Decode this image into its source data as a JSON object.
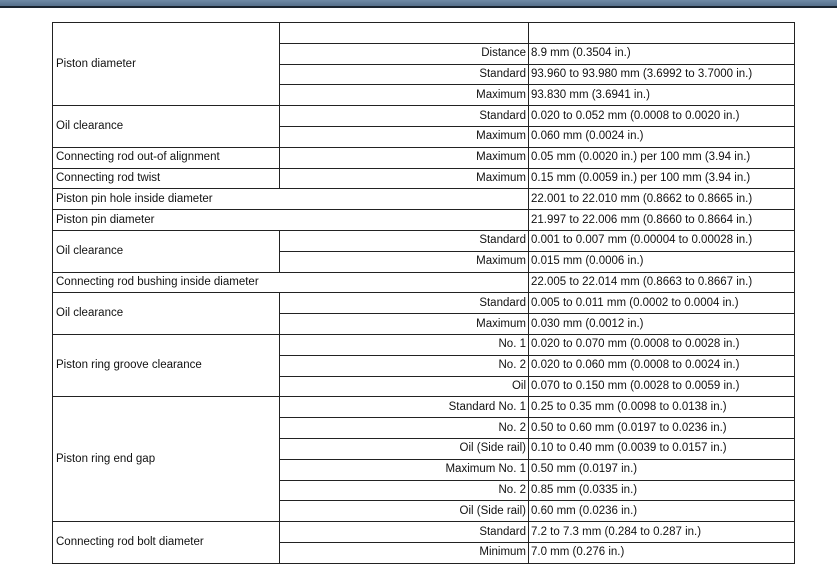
{
  "groups": [
    {
      "label": "Piston diameter",
      "header_row": true,
      "rows": [
        {
          "sub": "Distance",
          "value": "8.9 mm (0.3504 in.)"
        },
        {
          "sub": "Standard",
          "value": "93.960 to 93.980 mm (3.6992 to 3.7000 in.)"
        },
        {
          "sub": "Maximum",
          "value": "93.830 mm (3.6941 in.)"
        }
      ]
    },
    {
      "label": "Oil clearance",
      "rows": [
        {
          "sub": "Standard",
          "value": "0.020 to 0.052 mm (0.0008 to 0.0020 in.)"
        },
        {
          "sub": "Maximum",
          "value": "0.060 mm (0.0024 in.)"
        }
      ]
    },
    {
      "label": "Connecting rod out-of alignment",
      "rows": [
        {
          "sub": "Maximum",
          "value": "0.05 mm (0.0020 in.) per 100 mm (3.94 in.)"
        }
      ]
    },
    {
      "label": "Connecting rod twist",
      "rows": [
        {
          "sub": "Maximum",
          "value": "0.15 mm (0.0059 in.) per 100 mm (3.94 in.)"
        }
      ]
    },
    {
      "label": "Piston pin hole inside diameter",
      "wide": true,
      "rows": [
        {
          "value": "22.001 to 22.010 mm (0.8662 to 0.8665 in.)"
        }
      ]
    },
    {
      "label": "Piston pin diameter",
      "wide": true,
      "rows": [
        {
          "value": "21.997 to 22.006 mm (0.8660 to 0.8664 in.)"
        }
      ]
    },
    {
      "label": "Oil clearance",
      "rows": [
        {
          "sub": "Standard",
          "value": "0.001 to 0.007 mm (0.00004 to 0.00028 in.)"
        },
        {
          "sub": "Maximum",
          "value": "0.015 mm (0.0006 in.)"
        }
      ]
    },
    {
      "label": "Connecting rod bushing inside diameter",
      "wide": true,
      "rows": [
        {
          "value": "22.005 to 22.014 mm (0.8663 to 0.8667 in.)"
        }
      ]
    },
    {
      "label": "Oil clearance",
      "rows": [
        {
          "sub": "Standard",
          "value": "0.005 to 0.011 mm (0.0002 to 0.0004 in.)"
        },
        {
          "sub": "Maximum",
          "value": "0.030 mm (0.0012 in.)"
        }
      ]
    },
    {
      "label": "Piston ring groove clearance",
      "rows": [
        {
          "sub": "No. 1",
          "value": "0.020 to 0.070 mm (0.0008 to 0.0028 in.)"
        },
        {
          "sub": "No. 2",
          "value": "0.020 to 0.060 mm (0.0008 to 0.0024 in.)"
        },
        {
          "sub": "Oil",
          "value": "0.070 to 0.150 mm (0.0028 to 0.0059 in.)"
        }
      ]
    },
    {
      "label": "Piston ring end gap",
      "rows": [
        {
          "sub": "Standard No. 1",
          "value": "0.25 to 0.35 mm (0.0098 to 0.0138 in.)"
        },
        {
          "sub": "No. 2",
          "value": "0.50 to 0.60 mm (0.0197 to 0.0236 in.)"
        },
        {
          "sub": "Oil (Side rail)",
          "value": "0.10 to 0.40 mm (0.0039 to 0.0157 in.)"
        },
        {
          "sub": "Maximum No. 1",
          "value": "0.50 mm (0.0197 in.)"
        },
        {
          "sub": "No. 2",
          "value": "0.85 mm (0.0335 in.)"
        },
        {
          "sub": "Oil (Side rail)",
          "value": "0.60 mm (0.0236 in.)"
        }
      ]
    },
    {
      "label": "Connecting rod bolt diameter",
      "rows": [
        {
          "sub": "Standard",
          "value": "7.2 to 7.3 mm (0.284 to 0.287 in.)"
        },
        {
          "sub": "Minimum",
          "value": "7.0 mm (0.276 in.)"
        }
      ]
    }
  ]
}
